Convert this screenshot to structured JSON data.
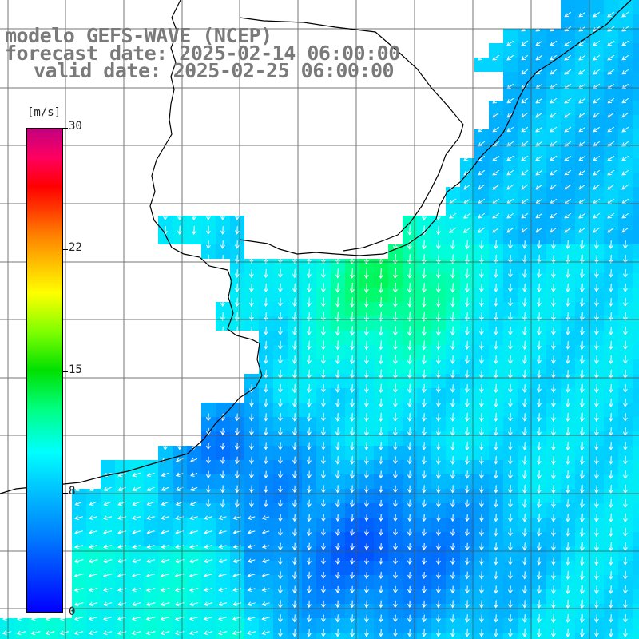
{
  "title": {
    "line1": "modelo GEFS-WAVE (NCEP)",
    "line2": "forecast date: 2025-02-14 06:00:00",
    "line3": "valid date: 2025-02-25 06:00:00"
  },
  "colorbar": {
    "unit": "[m/s]",
    "ticks": [
      {
        "label": "30",
        "value": 30
      },
      {
        "label": "22",
        "value": 22
      },
      {
        "label": "15",
        "value": 15
      },
      {
        "label": "8",
        "value": 8
      },
      {
        "label": "0",
        "value": 0
      }
    ],
    "min": 0,
    "max": 30
  },
  "map": {
    "field": "wind speed with direction arrows",
    "colors": {
      "land": "#ffffff",
      "grid": "#666666",
      "coast": "#000000",
      "arrow": "#ffffff"
    }
  }
}
